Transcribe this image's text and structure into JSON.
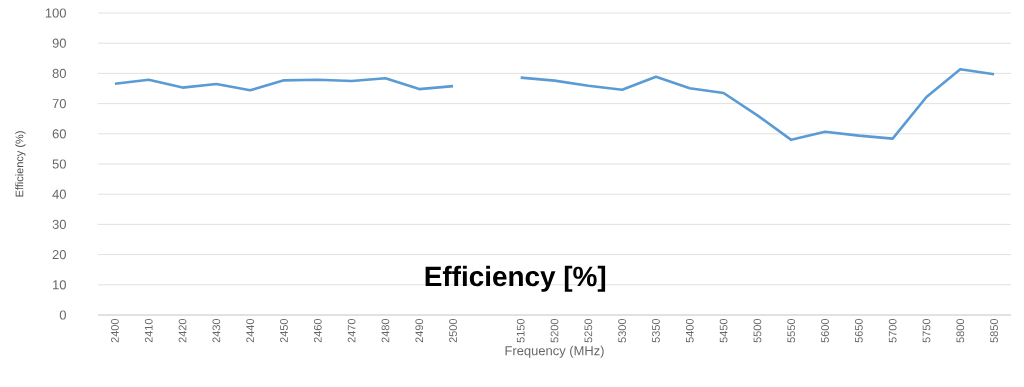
{
  "chart_data": {
    "type": "line",
    "title": "Efficiency [%]",
    "xlabel": "Frequency (MHz)",
    "ylabel": "Efficiency (%)",
    "categories": [
      "2400",
      "2410",
      "2420",
      "2430",
      "2440",
      "2450",
      "2460",
      "2470",
      "2480",
      "2490",
      "2500",
      null,
      "5150",
      "5200",
      "5250",
      "5300",
      "5350",
      "5400",
      "5450",
      "5500",
      "5550",
      "5600",
      "5650",
      "5700",
      "5750",
      "5800",
      "5850"
    ],
    "series": [
      {
        "color": "#5b9bd5",
        "values": [
          76.6,
          77.9,
          75.3,
          76.5,
          74.4,
          77.7,
          77.9,
          77.5,
          78.4,
          74.8,
          75.8,
          null,
          78.6,
          77.6,
          75.9,
          74.6,
          78.9,
          75.1,
          73.5,
          66.1,
          58.0,
          60.7,
          59.4,
          58.4,
          72.2,
          81.4,
          79.7
        ]
      }
    ],
    "ylim": [
      0,
      100
    ],
    "yticks": [
      0,
      10,
      20,
      30,
      40,
      50,
      60,
      70,
      80,
      90,
      100
    ],
    "grid": "y",
    "marker": "none",
    "line_style": "solid"
  }
}
